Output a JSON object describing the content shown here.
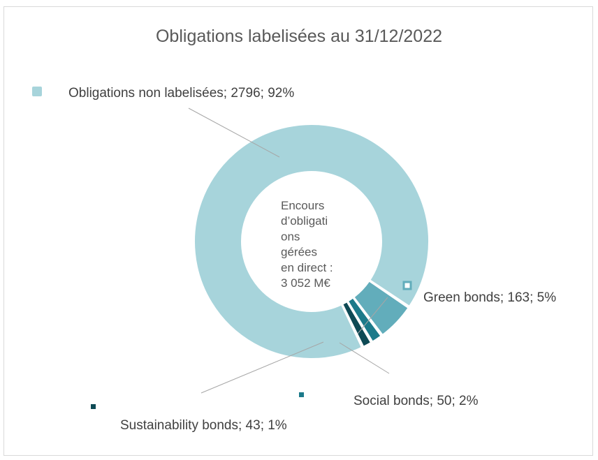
{
  "chart_data": {
    "type": "pie",
    "variant": "doughnut",
    "title": "Obligations labelisées au 31/12/2022",
    "center_text": [
      "Encours",
      "d’obligati",
      "ons",
      "gérées",
      "en direct :",
      "3 052 M€"
    ],
    "series": [
      {
        "name": "",
        "values": [
          {
            "category": "Obligations non labelisées",
            "value": 2796,
            "percent": "92%",
            "color": "#a7d4db",
            "label": "Obligations non labelisées; 2796; 92%"
          },
          {
            "category": "Green bonds",
            "value": 163,
            "percent": "5%",
            "color": "#62adbb",
            "label": "Green bonds; 163; 5%"
          },
          {
            "category": "Social bonds",
            "value": 50,
            "percent": "2%",
            "color": "#1c7a8a",
            "label": "Social bonds; 50; 2%"
          },
          {
            "category": "Sustainability bonds",
            "value": 43,
            "percent": "1%",
            "color": "#0e4a55",
            "label": "Sustainability bonds; 43; 1%"
          }
        ]
      }
    ],
    "legend": "none",
    "data_labels": "outside with leader lines"
  }
}
